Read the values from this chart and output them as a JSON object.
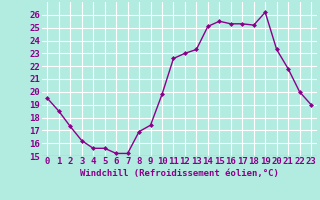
{
  "x": [
    0,
    1,
    2,
    3,
    4,
    5,
    6,
    7,
    8,
    9,
    10,
    11,
    12,
    13,
    14,
    15,
    16,
    17,
    18,
    19,
    20,
    21,
    22,
    23
  ],
  "y": [
    19.5,
    18.5,
    17.3,
    16.2,
    15.6,
    15.6,
    15.2,
    15.2,
    16.9,
    17.4,
    19.8,
    22.6,
    23.0,
    23.3,
    25.1,
    25.5,
    25.3,
    25.3,
    25.2,
    26.2,
    23.3,
    21.8,
    20.0,
    19.0
  ],
  "line_color": "#8B008B",
  "marker": "D",
  "marker_size": 2,
  "bg_color": "#b2ebe0",
  "grid_color": "#ffffff",
  "xlabel": "Windchill (Refroidissement éolien,°C)",
  "ylabel": "",
  "title": "",
  "xlim": [
    -0.5,
    23.5
  ],
  "ylim": [
    15,
    27
  ],
  "yticks": [
    15,
    16,
    17,
    18,
    19,
    20,
    21,
    22,
    23,
    24,
    25,
    26
  ],
  "xticks": [
    0,
    1,
    2,
    3,
    4,
    5,
    6,
    7,
    8,
    9,
    10,
    11,
    12,
    13,
    14,
    15,
    16,
    17,
    18,
    19,
    20,
    21,
    22,
    23
  ],
  "xlabel_fontsize": 6.5,
  "tick_fontsize": 6.5,
  "line_width": 1.0
}
